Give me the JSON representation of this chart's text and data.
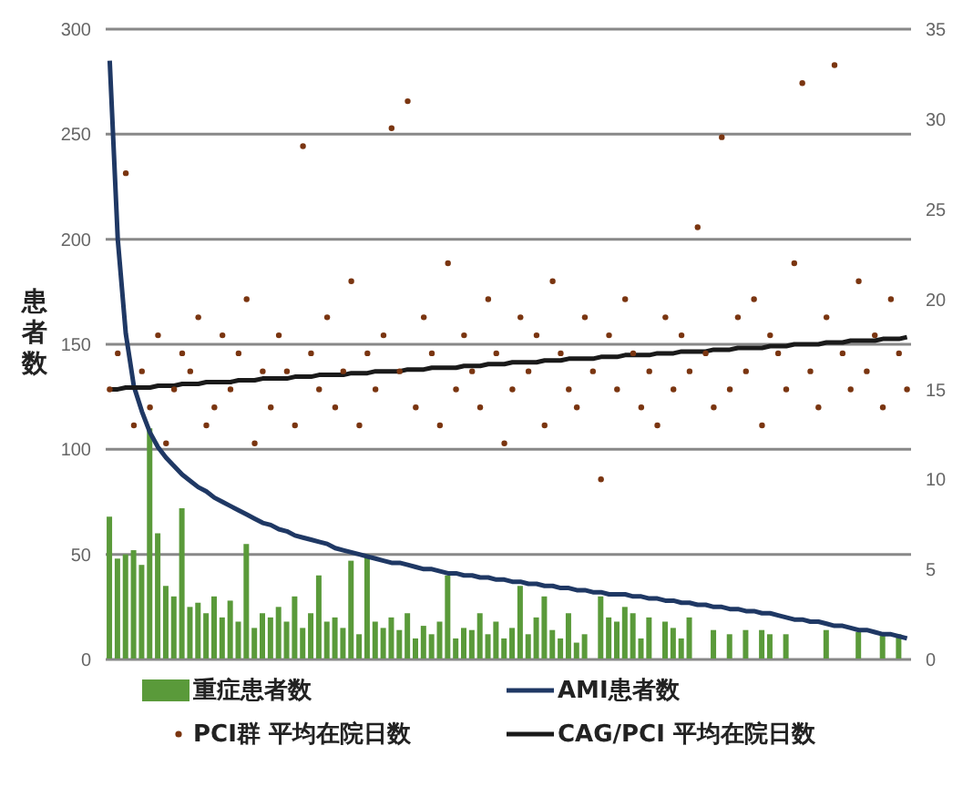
{
  "chart_data": {
    "type": "bar",
    "ylabel": "患者数",
    "categories": [
      null,
      null,
      null,
      null,
      null,
      null,
      null,
      null,
      null,
      null,
      null,
      null,
      null,
      null,
      null,
      null,
      null,
      null,
      null,
      null,
      null,
      null,
      null,
      null,
      null,
      null,
      null,
      null,
      null,
      null,
      null,
      null,
      null,
      null,
      null,
      null,
      null,
      null,
      null,
      null,
      null,
      null,
      null,
      null,
      null,
      null,
      null,
      null,
      null,
      null,
      null,
      null,
      null,
      null,
      null,
      null,
      null,
      null,
      null,
      null,
      null,
      null,
      null,
      null,
      null,
      null,
      null,
      null,
      null,
      null,
      null,
      null,
      null,
      null,
      null,
      null,
      null,
      null,
      null,
      null,
      null,
      null,
      null,
      null,
      null,
      null,
      null,
      null,
      null,
      null,
      null,
      null,
      null,
      null,
      null,
      null,
      null,
      null,
      null,
      null
    ],
    "series": [
      {
        "name": "重症患者数",
        "color": "#5a9a3a",
        "values": [
          68,
          48,
          50,
          52,
          45,
          110,
          60,
          35,
          30,
          72,
          25,
          27,
          22,
          30,
          20,
          28,
          18,
          55,
          15,
          22,
          20,
          25,
          18,
          30,
          15,
          22,
          40,
          18,
          20,
          15,
          47,
          12,
          50,
          18,
          15,
          20,
          14,
          22,
          10,
          16,
          12,
          18,
          40,
          10,
          15,
          14,
          22,
          12,
          18,
          10,
          15,
          35,
          12,
          20,
          30,
          14,
          10,
          22,
          8,
          12,
          0,
          30,
          20,
          18,
          25,
          22,
          10,
          20,
          0,
          18,
          15,
          10,
          20,
          0,
          0,
          14,
          0,
          12,
          0,
          14,
          0,
          14,
          12,
          0,
          12,
          0,
          0,
          0,
          0,
          14,
          0,
          0,
          0,
          13,
          0,
          0,
          12,
          0,
          12,
          0
        ]
      },
      {
        "name": "AMI患者数",
        "type": "line",
        "color": "#1f3864",
        "values": [
          285,
          200,
          155,
          130,
          118,
          108,
          101,
          96,
          92,
          88,
          85,
          82,
          80,
          77,
          75,
          73,
          71,
          69,
          67,
          65,
          64,
          62,
          61,
          59,
          58,
          57,
          56,
          55,
          53,
          52,
          51,
          50,
          49,
          48,
          47,
          46,
          46,
          45,
          44,
          43,
          43,
          42,
          41,
          41,
          40,
          40,
          39,
          39,
          38,
          38,
          37,
          37,
          36,
          36,
          35,
          35,
          34,
          34,
          33,
          33,
          32,
          32,
          31,
          31,
          31,
          30,
          30,
          29,
          29,
          28,
          28,
          27,
          27,
          26,
          26,
          25,
          25,
          24,
          24,
          23,
          23,
          22,
          22,
          21,
          20,
          19,
          19,
          18,
          18,
          17,
          16,
          16,
          15,
          14,
          14,
          13,
          12,
          12,
          11,
          10
        ]
      },
      {
        "name": "PCI群 平均在院日数",
        "type": "scatter",
        "axis": "y2",
        "color": "#7a3510",
        "marker": "circle",
        "values": [
          15,
          17,
          27,
          13,
          16,
          14,
          18,
          12,
          15,
          17,
          16,
          19,
          13,
          14,
          18,
          15,
          17,
          20,
          12,
          16,
          14,
          18,
          16,
          13,
          28.5,
          17,
          15,
          19,
          14,
          16,
          21,
          13,
          17,
          15,
          18,
          29.5,
          16,
          31,
          14,
          19,
          17,
          13,
          22,
          15,
          18,
          16,
          14,
          20,
          17,
          12,
          15,
          19,
          16,
          18,
          13,
          21,
          17,
          15,
          14,
          19,
          16,
          10,
          18,
          15,
          20,
          17,
          14,
          16,
          13,
          19,
          15,
          18,
          16,
          24,
          17,
          14,
          29,
          15,
          19,
          16,
          20,
          13,
          18,
          17,
          15,
          22,
          32,
          16,
          14,
          19,
          33,
          17,
          15,
          21,
          16,
          18,
          14,
          20,
          17,
          15
        ]
      },
      {
        "name": "CAG/PCI 平均在院日数",
        "type": "line",
        "axis": "y2",
        "color": "#1a1a1a",
        "values": [
          15.0,
          15.0,
          15.1,
          15.1,
          15.1,
          15.1,
          15.2,
          15.2,
          15.2,
          15.3,
          15.3,
          15.3,
          15.4,
          15.4,
          15.4,
          15.4,
          15.5,
          15.5,
          15.5,
          15.6,
          15.6,
          15.6,
          15.6,
          15.7,
          15.7,
          15.7,
          15.8,
          15.8,
          15.8,
          15.8,
          15.9,
          15.9,
          15.9,
          16.0,
          16.0,
          16.0,
          16.0,
          16.1,
          16.1,
          16.1,
          16.2,
          16.2,
          16.2,
          16.2,
          16.3,
          16.3,
          16.3,
          16.4,
          16.4,
          16.4,
          16.5,
          16.5,
          16.5,
          16.5,
          16.6,
          16.6,
          16.6,
          16.7,
          16.7,
          16.7,
          16.7,
          16.8,
          16.8,
          16.8,
          16.9,
          16.9,
          16.9,
          16.9,
          17.0,
          17.0,
          17.0,
          17.1,
          17.1,
          17.1,
          17.1,
          17.2,
          17.2,
          17.2,
          17.3,
          17.3,
          17.3,
          17.3,
          17.4,
          17.4,
          17.4,
          17.5,
          17.5,
          17.5,
          17.5,
          17.6,
          17.6,
          17.6,
          17.7,
          17.7,
          17.7,
          17.7,
          17.8,
          17.8,
          17.8,
          17.9
        ]
      }
    ],
    "ylim": [
      0,
      300
    ],
    "yticks": [
      0,
      50,
      100,
      150,
      200,
      250,
      300
    ],
    "y2lim": [
      0,
      35
    ],
    "y2ticks": [
      0,
      5,
      10,
      15,
      20,
      25,
      30,
      35
    ],
    "grid": "y",
    "legend": "bottom"
  }
}
